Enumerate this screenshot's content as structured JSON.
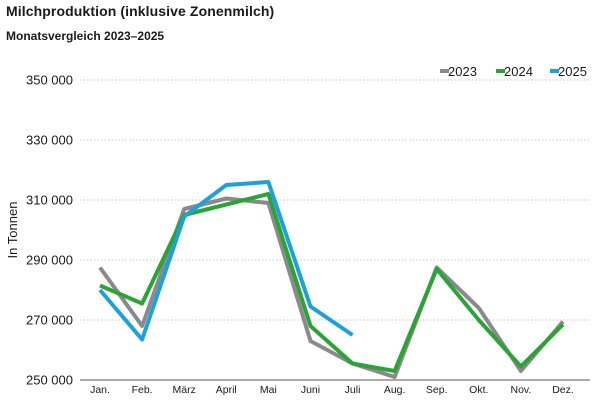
{
  "chart_data": {
    "type": "line",
    "title": "Milchproduktion (inklusive Zonenmilch)",
    "subtitle": "Monatsvergleich 2023–2025",
    "xlabel": "",
    "ylabel": "In Tonnen",
    "ylim": [
      250000,
      350000
    ],
    "yticks": [
      250000,
      270000,
      290000,
      310000,
      330000,
      350000
    ],
    "ytick_labels": [
      "250 000",
      "270 000",
      "290 000",
      "310 000",
      "330 000",
      "350 000"
    ],
    "categories": [
      "Jan.",
      "Feb.",
      "März",
      "April",
      "Mai",
      "Juni",
      "Juli",
      "Aug.",
      "Sep.",
      "Okt.",
      "Nov.",
      "Dez."
    ],
    "grid": "horizontal",
    "legend_position": "top-right",
    "series": [
      {
        "name": "2023",
        "color": "#8a8a8a",
        "values": [
          287500,
          268000,
          307000,
          310500,
          309000,
          263000,
          255500,
          251000,
          287500,
          274000,
          253000,
          269500
        ]
      },
      {
        "name": "2024",
        "color": "#2aa437",
        "values": [
          281500,
          275500,
          305000,
          308500,
          312000,
          268000,
          255500,
          253000,
          287000,
          270000,
          254500,
          268500
        ]
      },
      {
        "name": "2025",
        "color": "#1ea0dc",
        "values": [
          280000,
          263500,
          304500,
          315000,
          316000,
          274500,
          265000,
          null,
          null,
          null,
          null,
          null
        ]
      }
    ]
  }
}
